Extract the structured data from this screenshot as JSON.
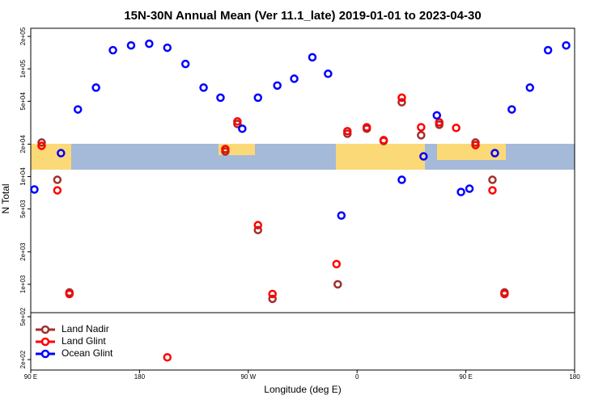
{
  "chart_data": {
    "type": "scatter",
    "title": "15N-30N Annual Mean (Ver 11.1_late)   2019-01-01 to 2023-04-30",
    "x_label": "Longitude (deg E)",
    "y_label": "N Total",
    "log_y": true,
    "legend": "bottom-left",
    "xlim": [
      90,
      540
    ],
    "ylim": [
      160,
      238000
    ],
    "xticks": [
      {
        "value": 90,
        "label": "90 E"
      },
      180,
      {
        "value": 270,
        "label": "90 W"
      },
      {
        "value": 360,
        "label": "0"
      },
      {
        "value": 450,
        "label": "90 E"
      },
      {
        "value": 540,
        "label": "180"
      }
    ],
    "yticks": [
      {
        "value": 200,
        "label": "2e+02"
      },
      {
        "value": 500,
        "label": "5e+02"
      },
      {
        "value": 1000,
        "label": "1e+03"
      },
      {
        "value": 2000,
        "label": "2e+03"
      },
      {
        "value": 5000,
        "label": "5e+03"
      },
      {
        "value": 10000,
        "label": "1e+04"
      },
      {
        "value": 20000,
        "label": "2e+04"
      },
      {
        "value": 50000,
        "label": "5e+04"
      },
      {
        "value": 100000,
        "label": "1e+05"
      },
      {
        "value": 200000,
        "label": "2e+05"
      }
    ],
    "series": [
      {
        "name": "Land Nadir",
        "color": "#a0302e",
        "x": [
          99,
          112,
          122,
          251,
          261,
          278,
          290,
          344,
          352,
          368,
          382,
          397,
          413,
          428,
          458,
          472,
          482
        ],
        "values": [
          20700,
          9330,
          841,
          17100,
          30800,
          3190,
          733,
          1000,
          25000,
          27800,
          21400,
          49000,
          24200,
          30300,
          20700,
          9330,
          841
        ]
      },
      {
        "name": "Land Glint",
        "color": "#ff0000",
        "x": [
          99,
          112,
          122,
          203,
          251,
          261,
          278,
          290,
          343,
          352,
          368,
          382,
          397,
          413,
          428,
          442,
          458,
          472,
          482
        ],
        "values": [
          19300,
          7450,
          813,
          210,
          18000,
          32500,
          3540,
          813,
          1540,
          26400,
          28700,
          21800,
          54000,
          28700,
          31900,
          28300,
          19600,
          7450,
          813
        ]
      },
      {
        "name": "Ocean Glint",
        "color": "#0000ff",
        "x": [
          93,
          115,
          129,
          144,
          158,
          173,
          188,
          203,
          218,
          233,
          247,
          265,
          278,
          294,
          308,
          323,
          336,
          347,
          397,
          415,
          426,
          446,
          453,
          474,
          488,
          503,
          518,
          533
        ],
        "values": [
          7590,
          16500,
          42000,
          67000,
          149000,
          165000,
          171000,
          157000,
          111000,
          67000,
          54000,
          27800,
          54000,
          70000,
          81000,
          128000,
          90000,
          4350,
          9330,
          15400,
          37000,
          7190,
          7720,
          16500,
          42000,
          67000,
          149000,
          165000
        ]
      }
    ]
  }
}
